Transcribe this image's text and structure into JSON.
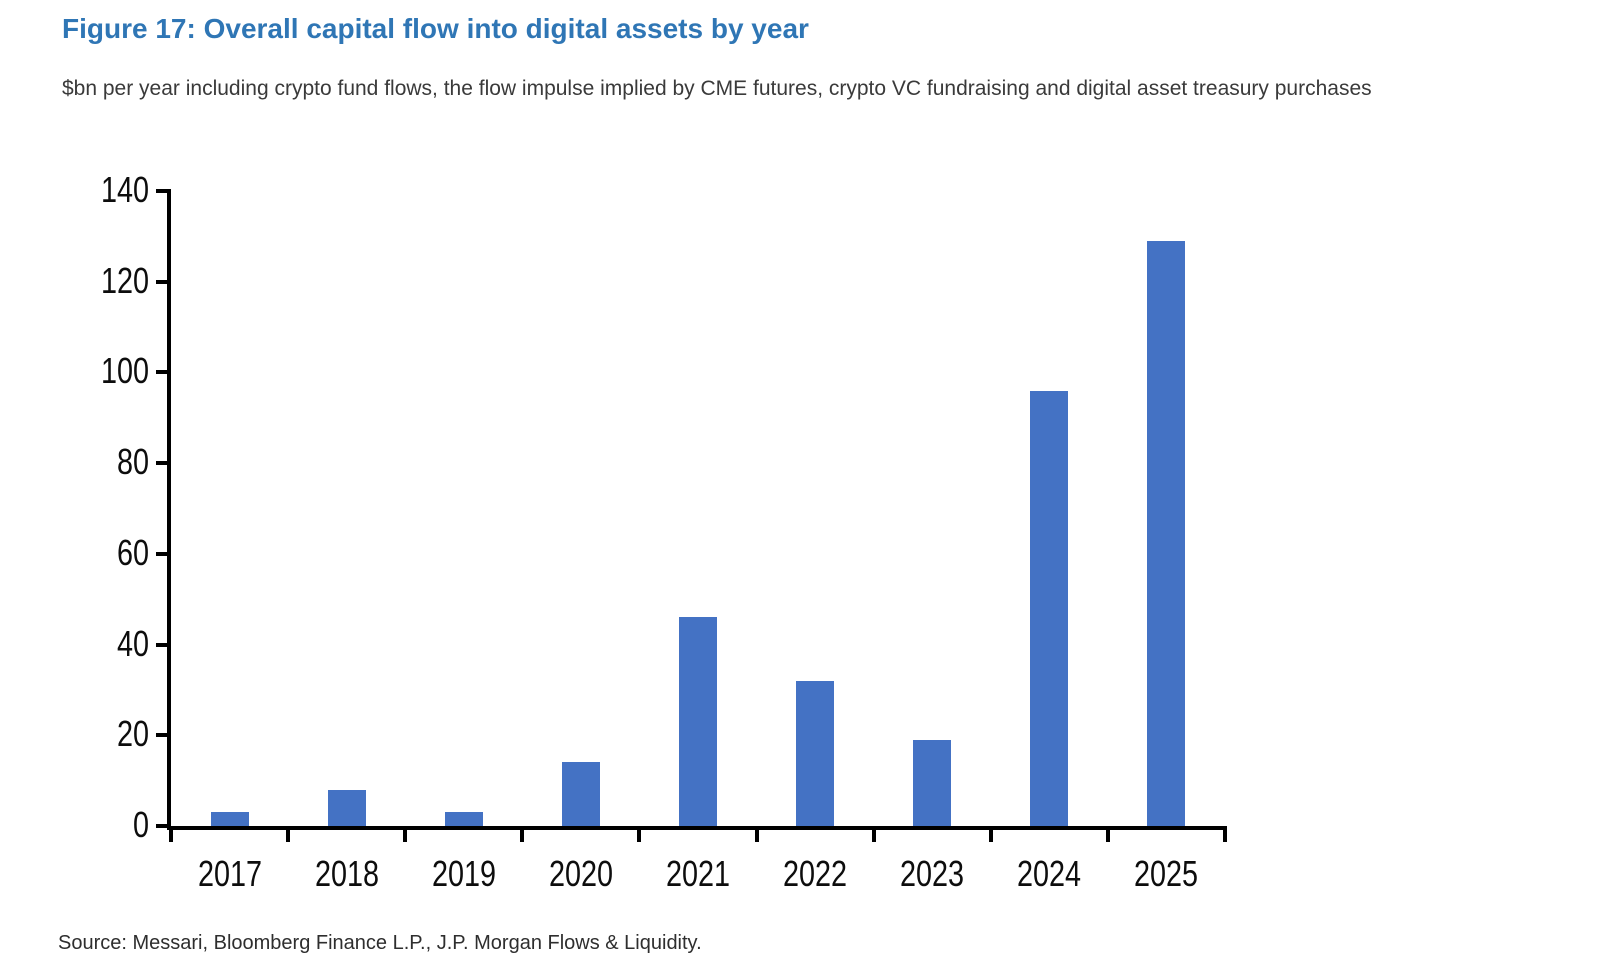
{
  "figure": {
    "title": "Figure 17: Overall capital flow into digital assets by year",
    "subtitle": "$bn per year including crypto fund flows, the flow impulse implied by CME futures, crypto VC fundraising and digital asset treasury purchases",
    "source": "Source: Messari, Bloomberg Finance L.P., J.P. Morgan Flows & Liquidity."
  },
  "chart_data": {
    "type": "bar",
    "title": "Figure 17: Overall capital flow into digital assets by year",
    "subtitle": "$bn per year including crypto fund flows, the flow impulse implied by CME futures, crypto VC fundraising and digital asset treasury purchases",
    "categories": [
      "2017",
      "2018",
      "2019",
      "2020",
      "2021",
      "2022",
      "2023",
      "2024",
      "2025"
    ],
    "values": [
      3,
      8,
      3,
      14,
      46,
      32,
      19,
      96,
      129
    ],
    "units": "$bn per year",
    "xlabel": "",
    "ylabel": "",
    "ylim": [
      0,
      140
    ],
    "yticks": [
      0,
      20,
      40,
      60,
      80,
      100,
      120,
      140
    ],
    "grid": false,
    "legend": null,
    "bar_color": "#4472C4",
    "axis_color": "#000000",
    "source": "Source: Messari, Bloomberg Finance L.P., J.P. Morgan Flows & Liquidity."
  },
  "colors": {
    "title": "#2F76B5",
    "text": "#3A3A3A",
    "background": "#FFFFFF"
  }
}
